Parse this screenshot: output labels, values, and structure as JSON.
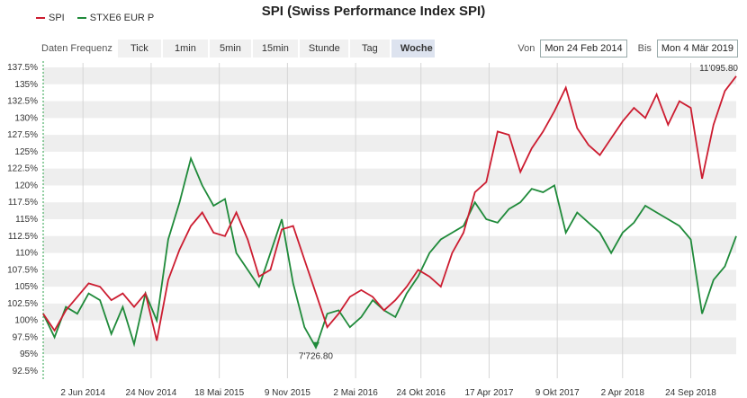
{
  "title": "SPI (Swiss Performance Index SPI)",
  "legend": [
    {
      "name": "SPI",
      "color": "#cc1c30"
    },
    {
      "name": "STXE6 EUR P",
      "color": "#1f8a3a"
    }
  ],
  "frequency": {
    "label": "Daten Frequenz",
    "options": [
      "Tick",
      "1min",
      "5min",
      "15min",
      "Stunde",
      "Tag",
      "Woche"
    ],
    "selected": "Woche"
  },
  "range": {
    "from_label": "Von",
    "from_value": "Mon 24 Feb 2014",
    "to_label": "Bis",
    "to_value": "Mon 4 Mär 2019"
  },
  "chart_data": {
    "type": "line",
    "ylim": [
      92.5,
      137.5
    ],
    "yticks": [
      "137.5%",
      "135%",
      "132.5%",
      "130%",
      "127.5%",
      "125%",
      "122.5%",
      "120%",
      "117.5%",
      "115%",
      "112.5%",
      "110%",
      "107.5%",
      "105%",
      "102.5%",
      "100%",
      "97.5%",
      "95%",
      "92.5%"
    ],
    "xticks": [
      "2 Jun 2014",
      "24 Nov 2014",
      "18 Mai 2015",
      "9 Nov 2015",
      "2 Mai 2016",
      "24 Okt 2016",
      "17 Apr 2017",
      "9 Okt 2017",
      "2 Apr 2018",
      "24 Sep 2018"
    ],
    "xtick_positions": [
      0.07,
      0.19,
      0.31,
      0.43,
      0.55,
      0.665,
      0.785,
      0.905,
      1.02,
      1.14
    ],
    "x": [
      0,
      0.02,
      0.04,
      0.06,
      0.08,
      0.1,
      0.12,
      0.14,
      0.16,
      0.18,
      0.2,
      0.22,
      0.24,
      0.26,
      0.28,
      0.3,
      0.32,
      0.34,
      0.36,
      0.38,
      0.4,
      0.42,
      0.44,
      0.46,
      0.48,
      0.5,
      0.52,
      0.54,
      0.56,
      0.58,
      0.6,
      0.62,
      0.64,
      0.66,
      0.68,
      0.7,
      0.72,
      0.74,
      0.76,
      0.78,
      0.8,
      0.82,
      0.84,
      0.86,
      0.88,
      0.9,
      0.92,
      0.94,
      0.96,
      0.98,
      1.0,
      1.02,
      1.04,
      1.06,
      1.08,
      1.1,
      1.12,
      1.14,
      1.16,
      1.18,
      1.2,
      1.22
    ],
    "series": [
      {
        "name": "SPI",
        "values": [
          101,
          98.5,
          101.5,
          103.5,
          105.5,
          105,
          103,
          104,
          102,
          104,
          97,
          106,
          110.5,
          114,
          116,
          113,
          112.5,
          116,
          112,
          106.5,
          107.5,
          113.5,
          114,
          109,
          104,
          99,
          101,
          103.5,
          104.5,
          103.5,
          101.5,
          103,
          105,
          107.5,
          106.5,
          105,
          110,
          113,
          119,
          120.5,
          128,
          127.5,
          122,
          125.5,
          128,
          131,
          134.5,
          128.5,
          126,
          124.5,
          127,
          129.5,
          131.5,
          130,
          133.5,
          129,
          132.5,
          131.5,
          121,
          129,
          134,
          136.2
        ]
      },
      {
        "name": "STXE6 EUR P",
        "values": [
          101,
          97.5,
          102,
          101,
          104,
          103,
          98,
          102,
          96.5,
          104,
          100,
          112,
          117.5,
          124,
          120,
          117,
          118,
          110,
          107.5,
          105,
          110,
          115,
          105.5,
          99,
          96,
          101,
          101.5,
          99,
          100.5,
          103,
          101.5,
          100.5,
          104,
          106.5,
          110,
          112,
          113,
          114,
          117.5,
          115,
          114.5,
          116.5,
          117.5,
          119.5,
          119,
          120,
          113,
          116,
          114.5,
          113,
          110,
          113,
          114.5,
          117,
          116,
          115,
          114,
          112,
          101,
          106,
          108,
          112.5
        ]
      }
    ],
    "annotations": [
      {
        "text": "11'095.80",
        "color": "#2b8fc9"
      },
      {
        "text": "7'726.80",
        "color": "#cc1c30"
      }
    ]
  }
}
